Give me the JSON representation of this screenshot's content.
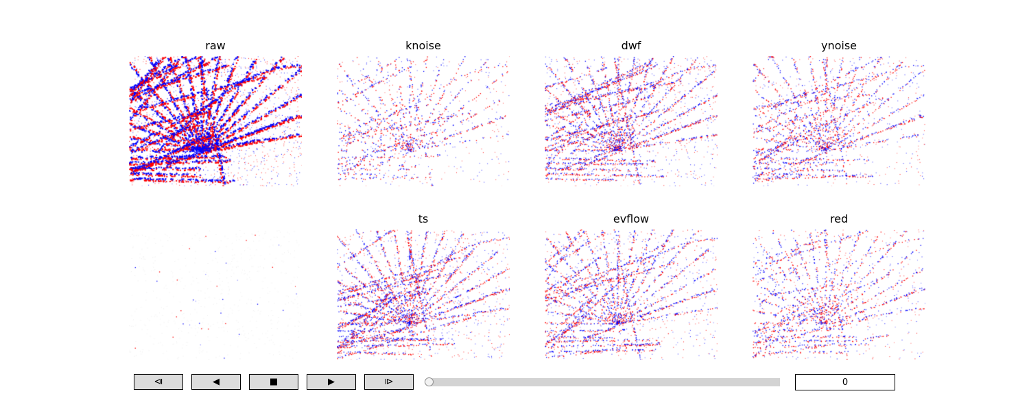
{
  "colors": {
    "positive_events": "#ff0000",
    "negative_events": "#0000ff",
    "background": "#ffffff",
    "button_fill": "#dcdcdc",
    "slider_track": "#d3d3d3"
  },
  "panels": [
    {
      "title": "raw",
      "density": 0.42
    },
    {
      "title": "knoise",
      "density": 0.1
    },
    {
      "title": "dwf",
      "density": 0.24
    },
    {
      "title": "ynoise",
      "density": 0.16
    },
    {
      "title": "",
      "density": 0.003
    },
    {
      "title": "ts",
      "density": 0.24
    },
    {
      "title": "evflow",
      "density": 0.2
    },
    {
      "title": "red",
      "density": 0.13
    }
  ],
  "controls": {
    "buttons": [
      {
        "label": "⧏",
        "icon": "step-back-icon"
      },
      {
        "label": "◀",
        "icon": "play-reverse-icon"
      },
      {
        "label": "■",
        "icon": "stop-icon"
      },
      {
        "label": "▶",
        "icon": "play-icon"
      },
      {
        "label": "⧐",
        "icon": "step-forward-icon"
      }
    ],
    "slider_value": 0,
    "frame_value": "0"
  }
}
